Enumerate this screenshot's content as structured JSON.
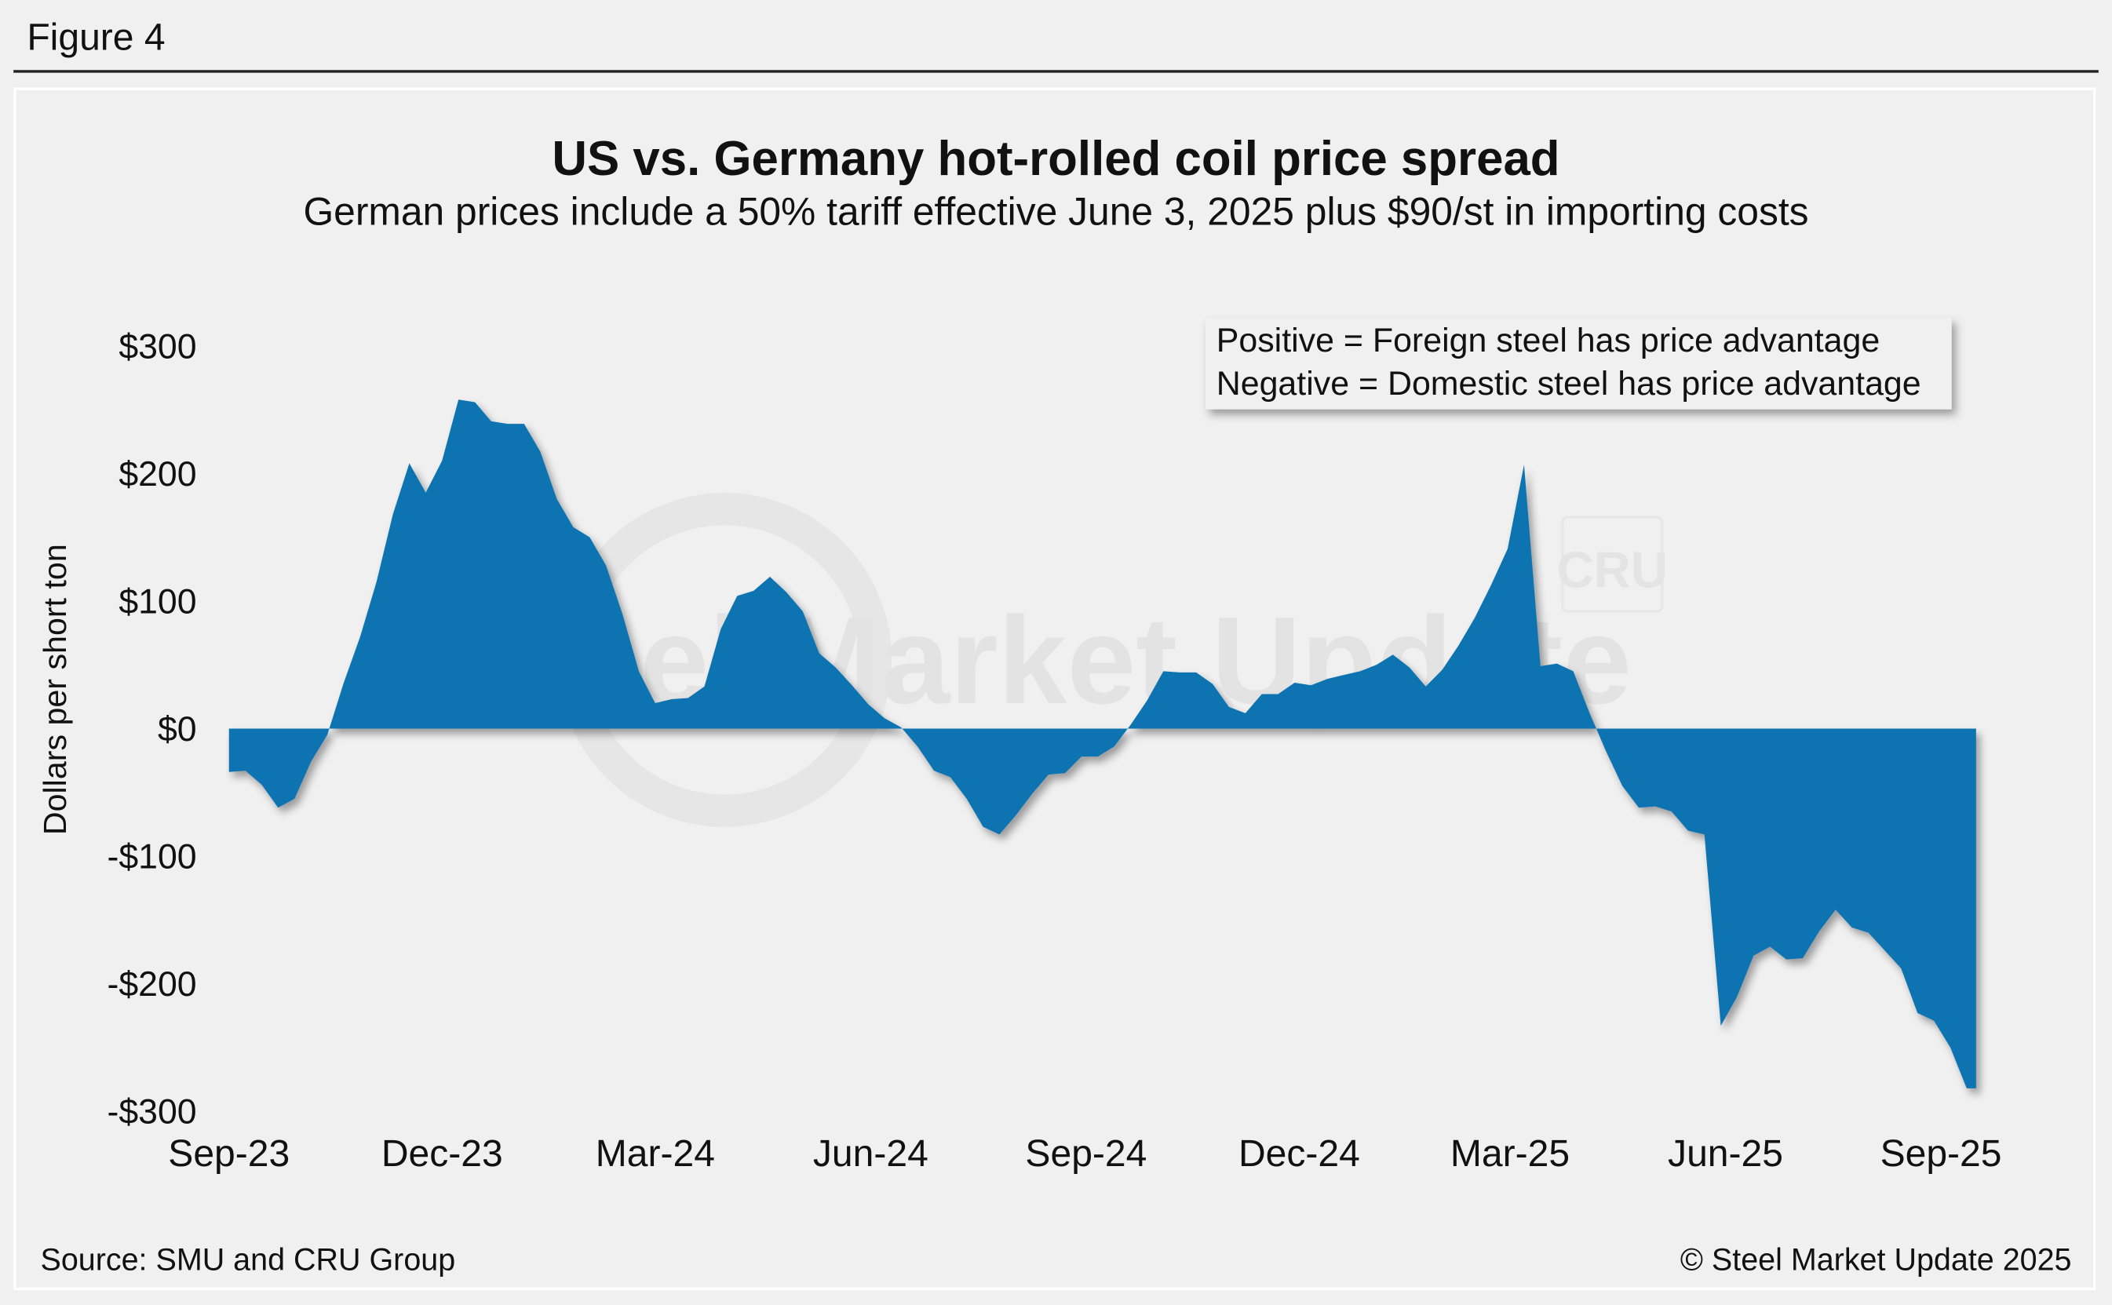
{
  "figure_label": "Figure 4",
  "source": "Source: SMU and CRU Group",
  "copyright": "© Steel Market Update 2025",
  "watermark": {
    "text": "Steel Market Update",
    "logo": "CRU"
  },
  "colors": {
    "area": "#1073b1",
    "background": "#f0f0f0"
  },
  "chart_data": {
    "type": "area",
    "title": "US vs. Germany hot-rolled coil price spread",
    "subtitle": "German prices include a 50% tariff effective June 3, 2025 plus $90/st in importing costs",
    "ylabel": "Dollars per short ton",
    "xlabel": "",
    "ylim": [
      -300,
      300
    ],
    "yticks": [
      300,
      200,
      100,
      0,
      -100,
      -200,
      -300
    ],
    "ytick_labels": [
      "$300",
      "$200",
      "$100",
      "$0",
      "-$100",
      "-$200",
      "-$300"
    ],
    "xticks": [
      "2023-09-01",
      "2023-12-01",
      "2024-03-01",
      "2024-06-01",
      "2024-09-01",
      "2024-12-01",
      "2025-03-01",
      "2025-06-01",
      "2025-09-01"
    ],
    "xtick_labels": [
      "Sep-23",
      "Dec-23",
      "Mar-24",
      "Jun-24",
      "Sep-24",
      "Dec-24",
      "Mar-25",
      "Jun-25",
      "Sep-25"
    ],
    "grid": false,
    "legend_notes": [
      "Positive = Foreign steel has price advantage",
      "Negative = Domestic steel has price advantage"
    ],
    "legend_placement": "top-right",
    "x": [
      "2023-09-01",
      "2023-09-08",
      "2023-09-15",
      "2023-09-22",
      "2023-09-29",
      "2023-10-06",
      "2023-10-13",
      "2023-10-20",
      "2023-10-27",
      "2023-11-03",
      "2023-11-10",
      "2023-11-17",
      "2023-11-24",
      "2023-12-01",
      "2023-12-08",
      "2023-12-15",
      "2023-12-22",
      "2023-12-29",
      "2024-01-05",
      "2024-01-12",
      "2024-01-19",
      "2024-01-26",
      "2024-02-02",
      "2024-02-09",
      "2024-02-16",
      "2024-02-23",
      "2024-03-01",
      "2024-03-08",
      "2024-03-15",
      "2024-03-22",
      "2024-03-29",
      "2024-04-05",
      "2024-04-12",
      "2024-04-19",
      "2024-04-26",
      "2024-05-03",
      "2024-05-10",
      "2024-05-17",
      "2024-05-24",
      "2024-05-31",
      "2024-06-07",
      "2024-06-14",
      "2024-06-21",
      "2024-06-28",
      "2024-07-05",
      "2024-07-12",
      "2024-07-19",
      "2024-07-26",
      "2024-08-02",
      "2024-08-09",
      "2024-08-16",
      "2024-08-23",
      "2024-08-30",
      "2024-09-06",
      "2024-09-13",
      "2024-09-20",
      "2024-09-27",
      "2024-10-04",
      "2024-10-11",
      "2024-10-18",
      "2024-10-25",
      "2024-11-01",
      "2024-11-08",
      "2024-11-15",
      "2024-11-22",
      "2024-11-29",
      "2024-12-06",
      "2024-12-13",
      "2024-12-20",
      "2024-12-27",
      "2025-01-03",
      "2025-01-10",
      "2025-01-17",
      "2025-01-24",
      "2025-01-31",
      "2025-02-07",
      "2025-02-14",
      "2025-02-21",
      "2025-02-28",
      "2025-03-07",
      "2025-03-14",
      "2025-03-21",
      "2025-03-28",
      "2025-04-04",
      "2025-04-11",
      "2025-04-18",
      "2025-04-25",
      "2025-05-02",
      "2025-05-09",
      "2025-05-16",
      "2025-05-23",
      "2025-05-30",
      "2025-06-06",
      "2025-06-13",
      "2025-06-20",
      "2025-06-27",
      "2025-07-04",
      "2025-07-11",
      "2025-07-18",
      "2025-07-25",
      "2025-08-01",
      "2025-08-08",
      "2025-08-15",
      "2025-08-22",
      "2025-08-29",
      "2025-09-05",
      "2025-09-12"
    ],
    "values": [
      -34,
      -33,
      -44,
      -62,
      -55,
      -26,
      -5,
      36,
      72,
      115,
      168,
      208,
      185,
      210,
      258,
      256,
      241,
      239,
      239,
      217,
      180,
      158,
      150,
      128,
      90,
      45,
      20,
      23,
      24,
      33,
      78,
      104,
      108,
      119,
      107,
      92,
      59,
      48,
      34,
      19,
      8,
      1,
      -14,
      -33,
      -38,
      -55,
      -77,
      -83,
      -68,
      -51,
      -36,
      -35,
      -22,
      -22,
      -14,
      3,
      22,
      45,
      44,
      44,
      35,
      17,
      12,
      27,
      27,
      36,
      34,
      39,
      42,
      45,
      50,
      58,
      48,
      33,
      46,
      65,
      87,
      113,
      141,
      207,
      49,
      51,
      45,
      12,
      -18,
      -45,
      -62,
      -61,
      -65,
      -80,
      -83,
      -233,
      -210,
      -178,
      -171,
      -181,
      -180,
      -159,
      -142,
      -156,
      -160,
      -174,
      -188,
      -223,
      -229,
      -250,
      -282
    ]
  }
}
